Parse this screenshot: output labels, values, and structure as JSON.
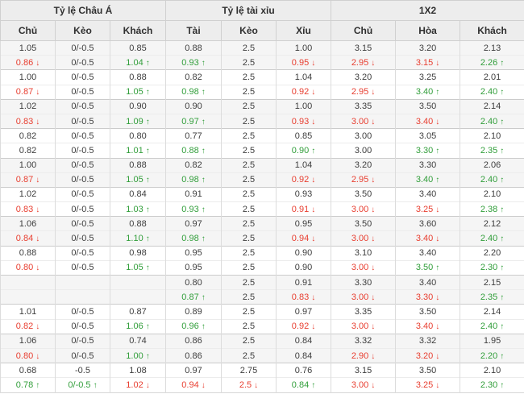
{
  "table": {
    "groups": [
      {
        "label": "Tỷ lệ Châu Á"
      },
      {
        "label": "Tỷ lệ tài xỉu"
      },
      {
        "label": "1X2"
      }
    ],
    "columns": [
      "Chủ",
      "Kèo",
      "Khách",
      "Tài",
      "Kèo",
      "Xỉu",
      "Chủ",
      "Hòa",
      "Khách"
    ],
    "icons": {
      "up": "↑",
      "down": "↓"
    },
    "colors": {
      "up_green": "#319e3a",
      "down_red": "#e83e30",
      "header_bg": "#ededed",
      "alt_row_bg": "#f5f5f5",
      "text": "#3d3d3d"
    },
    "rows": [
      {
        "shade": "alt",
        "cells": [
          [
            "1.05",
            "n",
            ""
          ],
          [
            "0/-0.5",
            "n",
            ""
          ],
          [
            "0.85",
            "n",
            ""
          ],
          [
            "0.88",
            "n",
            ""
          ],
          [
            "2.5",
            "n",
            ""
          ],
          [
            "1.00",
            "n",
            ""
          ],
          [
            "3.15",
            "n",
            ""
          ],
          [
            "3.20",
            "n",
            ""
          ],
          [
            "2.13",
            "n",
            ""
          ]
        ]
      },
      {
        "shade": "alt",
        "cells": [
          [
            "0.86",
            "r",
            "d"
          ],
          [
            "0/-0.5",
            "n",
            ""
          ],
          [
            "1.04",
            "g",
            "u"
          ],
          [
            "0.93",
            "g",
            "u"
          ],
          [
            "2.5",
            "n",
            ""
          ],
          [
            "0.95",
            "r",
            "d"
          ],
          [
            "2.95",
            "r",
            "d"
          ],
          [
            "3.15",
            "r",
            "d"
          ],
          [
            "2.26",
            "g",
            "u"
          ]
        ]
      },
      {
        "shade": "",
        "cells": [
          [
            "1.00",
            "n",
            ""
          ],
          [
            "0/-0.5",
            "n",
            ""
          ],
          [
            "0.88",
            "n",
            ""
          ],
          [
            "0.82",
            "n",
            ""
          ],
          [
            "2.5",
            "n",
            ""
          ],
          [
            "1.04",
            "n",
            ""
          ],
          [
            "3.20",
            "n",
            ""
          ],
          [
            "3.25",
            "n",
            ""
          ],
          [
            "2.01",
            "n",
            ""
          ]
        ]
      },
      {
        "shade": "",
        "cells": [
          [
            "0.87",
            "r",
            "d"
          ],
          [
            "0/-0.5",
            "n",
            ""
          ],
          [
            "1.05",
            "g",
            "u"
          ],
          [
            "0.98",
            "g",
            "u"
          ],
          [
            "2.5",
            "n",
            ""
          ],
          [
            "0.92",
            "r",
            "d"
          ],
          [
            "2.95",
            "r",
            "d"
          ],
          [
            "3.40",
            "g",
            "u"
          ],
          [
            "2.40",
            "g",
            "u"
          ]
        ]
      },
      {
        "shade": "alt",
        "cells": [
          [
            "1.02",
            "n",
            ""
          ],
          [
            "0/-0.5",
            "n",
            ""
          ],
          [
            "0.90",
            "n",
            ""
          ],
          [
            "0.90",
            "n",
            ""
          ],
          [
            "2.5",
            "n",
            ""
          ],
          [
            "1.00",
            "n",
            ""
          ],
          [
            "3.35",
            "n",
            ""
          ],
          [
            "3.50",
            "n",
            ""
          ],
          [
            "2.14",
            "n",
            ""
          ]
        ]
      },
      {
        "shade": "alt",
        "cells": [
          [
            "0.83",
            "r",
            "d"
          ],
          [
            "0/-0.5",
            "n",
            ""
          ],
          [
            "1.09",
            "g",
            "u"
          ],
          [
            "0.97",
            "g",
            "u"
          ],
          [
            "2.5",
            "n",
            ""
          ],
          [
            "0.93",
            "r",
            "d"
          ],
          [
            "3.00",
            "r",
            "d"
          ],
          [
            "3.40",
            "r",
            "d"
          ],
          [
            "2.40",
            "g",
            "u"
          ]
        ]
      },
      {
        "shade": "",
        "cells": [
          [
            "0.82",
            "n",
            ""
          ],
          [
            "0/-0.5",
            "n",
            ""
          ],
          [
            "0.80",
            "n",
            ""
          ],
          [
            "0.77",
            "n",
            ""
          ],
          [
            "2.5",
            "n",
            ""
          ],
          [
            "0.85",
            "n",
            ""
          ],
          [
            "3.00",
            "n",
            ""
          ],
          [
            "3.05",
            "n",
            ""
          ],
          [
            "2.10",
            "n",
            ""
          ]
        ]
      },
      {
        "shade": "",
        "cells": [
          [
            "0.82",
            "n",
            ""
          ],
          [
            "0/-0.5",
            "n",
            ""
          ],
          [
            "1.01",
            "g",
            "u"
          ],
          [
            "0.88",
            "g",
            "u"
          ],
          [
            "2.5",
            "n",
            ""
          ],
          [
            "0.90",
            "g",
            "u"
          ],
          [
            "3.00",
            "n",
            ""
          ],
          [
            "3.30",
            "g",
            "u"
          ],
          [
            "2.35",
            "g",
            "u"
          ]
        ]
      },
      {
        "shade": "alt",
        "cells": [
          [
            "1.00",
            "n",
            ""
          ],
          [
            "0/-0.5",
            "n",
            ""
          ],
          [
            "0.88",
            "n",
            ""
          ],
          [
            "0.82",
            "n",
            ""
          ],
          [
            "2.5",
            "n",
            ""
          ],
          [
            "1.04",
            "n",
            ""
          ],
          [
            "3.20",
            "n",
            ""
          ],
          [
            "3.30",
            "n",
            ""
          ],
          [
            "2.06",
            "n",
            ""
          ]
        ]
      },
      {
        "shade": "alt",
        "cells": [
          [
            "0.87",
            "r",
            "d"
          ],
          [
            "0/-0.5",
            "n",
            ""
          ],
          [
            "1.05",
            "g",
            "u"
          ],
          [
            "0.98",
            "g",
            "u"
          ],
          [
            "2.5",
            "n",
            ""
          ],
          [
            "0.92",
            "r",
            "d"
          ],
          [
            "2.95",
            "r",
            "d"
          ],
          [
            "3.40",
            "g",
            "u"
          ],
          [
            "2.40",
            "g",
            "u"
          ]
        ]
      },
      {
        "shade": "",
        "cells": [
          [
            "1.02",
            "n",
            ""
          ],
          [
            "0/-0.5",
            "n",
            ""
          ],
          [
            "0.84",
            "n",
            ""
          ],
          [
            "0.91",
            "n",
            ""
          ],
          [
            "2.5",
            "n",
            ""
          ],
          [
            "0.93",
            "n",
            ""
          ],
          [
            "3.50",
            "n",
            ""
          ],
          [
            "3.40",
            "n",
            ""
          ],
          [
            "2.10",
            "n",
            ""
          ]
        ]
      },
      {
        "shade": "",
        "cells": [
          [
            "0.83",
            "r",
            "d"
          ],
          [
            "0/-0.5",
            "n",
            ""
          ],
          [
            "1.03",
            "g",
            "u"
          ],
          [
            "0.93",
            "g",
            "u"
          ],
          [
            "2.5",
            "n",
            ""
          ],
          [
            "0.91",
            "r",
            "d"
          ],
          [
            "3.00",
            "r",
            "d"
          ],
          [
            "3.25",
            "r",
            "d"
          ],
          [
            "2.38",
            "g",
            "u"
          ]
        ]
      },
      {
        "shade": "alt",
        "cells": [
          [
            "1.06",
            "n",
            ""
          ],
          [
            "0/-0.5",
            "n",
            ""
          ],
          [
            "0.88",
            "n",
            ""
          ],
          [
            "0.97",
            "n",
            ""
          ],
          [
            "2.5",
            "n",
            ""
          ],
          [
            "0.95",
            "n",
            ""
          ],
          [
            "3.50",
            "n",
            ""
          ],
          [
            "3.60",
            "n",
            ""
          ],
          [
            "2.12",
            "n",
            ""
          ]
        ]
      },
      {
        "shade": "alt",
        "cells": [
          [
            "0.84",
            "r",
            "d"
          ],
          [
            "0/-0.5",
            "n",
            ""
          ],
          [
            "1.10",
            "g",
            "u"
          ],
          [
            "0.98",
            "g",
            "u"
          ],
          [
            "2.5",
            "n",
            ""
          ],
          [
            "0.94",
            "r",
            "d"
          ],
          [
            "3.00",
            "r",
            "d"
          ],
          [
            "3.40",
            "r",
            "d"
          ],
          [
            "2.40",
            "g",
            "u"
          ]
        ]
      },
      {
        "shade": "",
        "cells": [
          [
            "0.88",
            "n",
            ""
          ],
          [
            "0/-0.5",
            "n",
            ""
          ],
          [
            "0.98",
            "n",
            ""
          ],
          [
            "0.95",
            "n",
            ""
          ],
          [
            "2.5",
            "n",
            ""
          ],
          [
            "0.90",
            "n",
            ""
          ],
          [
            "3.10",
            "n",
            ""
          ],
          [
            "3.40",
            "n",
            ""
          ],
          [
            "2.20",
            "n",
            ""
          ]
        ]
      },
      {
        "shade": "",
        "cells": [
          [
            "0.80",
            "r",
            "d"
          ],
          [
            "0/-0.5",
            "n",
            ""
          ],
          [
            "1.05",
            "g",
            "u"
          ],
          [
            "0.95",
            "n",
            ""
          ],
          [
            "2.5",
            "n",
            ""
          ],
          [
            "0.90",
            "n",
            ""
          ],
          [
            "3.00",
            "r",
            "d"
          ],
          [
            "3.50",
            "g",
            "u"
          ],
          [
            "2.30",
            "g",
            "u"
          ]
        ]
      },
      {
        "shade": "alt",
        "cells": [
          [
            "",
            "n",
            ""
          ],
          [
            "",
            "n",
            ""
          ],
          [
            "",
            "n",
            ""
          ],
          [
            "0.80",
            "n",
            ""
          ],
          [
            "2.5",
            "n",
            ""
          ],
          [
            "0.91",
            "n",
            ""
          ],
          [
            "3.30",
            "n",
            ""
          ],
          [
            "3.40",
            "n",
            ""
          ],
          [
            "2.15",
            "n",
            ""
          ]
        ]
      },
      {
        "shade": "alt",
        "cells": [
          [
            "",
            "n",
            ""
          ],
          [
            "",
            "n",
            ""
          ],
          [
            "",
            "n",
            ""
          ],
          [
            "0.87",
            "g",
            "u"
          ],
          [
            "2.5",
            "n",
            ""
          ],
          [
            "0.83",
            "r",
            "d"
          ],
          [
            "3.00",
            "r",
            "d"
          ],
          [
            "3.30",
            "r",
            "d"
          ],
          [
            "2.35",
            "g",
            "u"
          ]
        ]
      },
      {
        "shade": "",
        "cells": [
          [
            "1.01",
            "n",
            ""
          ],
          [
            "0/-0.5",
            "n",
            ""
          ],
          [
            "0.87",
            "n",
            ""
          ],
          [
            "0.89",
            "n",
            ""
          ],
          [
            "2.5",
            "n",
            ""
          ],
          [
            "0.97",
            "n",
            ""
          ],
          [
            "3.35",
            "n",
            ""
          ],
          [
            "3.50",
            "n",
            ""
          ],
          [
            "2.14",
            "n",
            ""
          ]
        ]
      },
      {
        "shade": "",
        "cells": [
          [
            "0.82",
            "r",
            "d"
          ],
          [
            "0/-0.5",
            "n",
            ""
          ],
          [
            "1.06",
            "g",
            "u"
          ],
          [
            "0.96",
            "g",
            "u"
          ],
          [
            "2.5",
            "n",
            ""
          ],
          [
            "0.92",
            "r",
            "d"
          ],
          [
            "3.00",
            "r",
            "d"
          ],
          [
            "3.40",
            "r",
            "d"
          ],
          [
            "2.40",
            "g",
            "u"
          ]
        ]
      },
      {
        "shade": "alt",
        "cells": [
          [
            "1.06",
            "n",
            ""
          ],
          [
            "0/-0.5",
            "n",
            ""
          ],
          [
            "0.74",
            "n",
            ""
          ],
          [
            "0.86",
            "n",
            ""
          ],
          [
            "2.5",
            "n",
            ""
          ],
          [
            "0.84",
            "n",
            ""
          ],
          [
            "3.32",
            "n",
            ""
          ],
          [
            "3.32",
            "n",
            ""
          ],
          [
            "1.95",
            "n",
            ""
          ]
        ]
      },
      {
        "shade": "alt",
        "cells": [
          [
            "0.80",
            "r",
            "d"
          ],
          [
            "0/-0.5",
            "n",
            ""
          ],
          [
            "1.00",
            "g",
            "u"
          ],
          [
            "0.86",
            "n",
            ""
          ],
          [
            "2.5",
            "n",
            ""
          ],
          [
            "0.84",
            "n",
            ""
          ],
          [
            "2.90",
            "r",
            "d"
          ],
          [
            "3.20",
            "r",
            "d"
          ],
          [
            "2.20",
            "g",
            "u"
          ]
        ]
      },
      {
        "shade": "",
        "cells": [
          [
            "0.68",
            "n",
            ""
          ],
          [
            "-0.5",
            "n",
            ""
          ],
          [
            "1.08",
            "n",
            ""
          ],
          [
            "0.97",
            "n",
            ""
          ],
          [
            "2.75",
            "n",
            ""
          ],
          [
            "0.76",
            "n",
            ""
          ],
          [
            "3.15",
            "n",
            ""
          ],
          [
            "3.50",
            "n",
            ""
          ],
          [
            "2.10",
            "n",
            ""
          ]
        ]
      },
      {
        "shade": "",
        "cells": [
          [
            "0.78",
            "g",
            "u"
          ],
          [
            "0/-0.5",
            "g",
            "u"
          ],
          [
            "1.02",
            "r",
            "d"
          ],
          [
            "0.94",
            "r",
            "d"
          ],
          [
            "2.5",
            "r",
            "d"
          ],
          [
            "0.84",
            "g",
            "u"
          ],
          [
            "3.00",
            "r",
            "d"
          ],
          [
            "3.25",
            "r",
            "d"
          ],
          [
            "2.30",
            "g",
            "u"
          ]
        ]
      }
    ]
  }
}
